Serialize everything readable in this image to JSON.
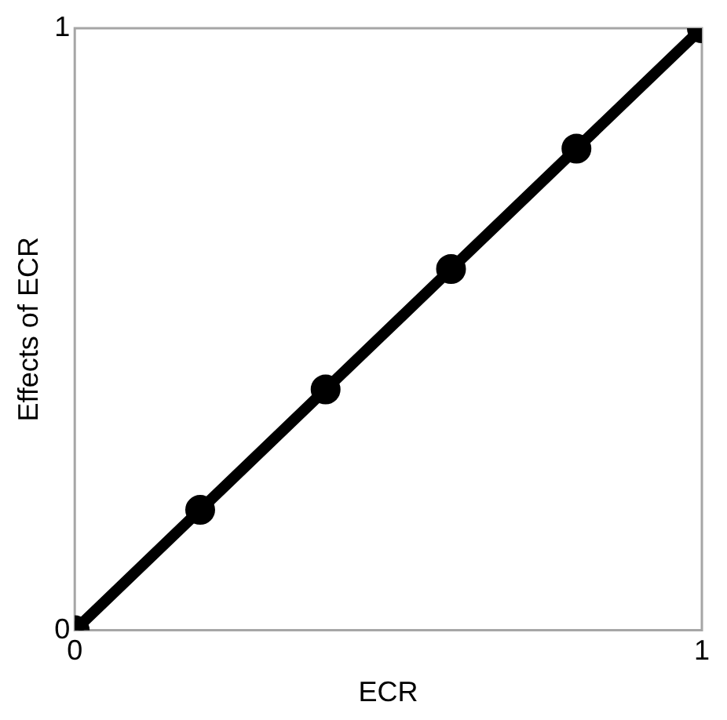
{
  "chart_data": {
    "type": "line",
    "xlabel": "ECR",
    "ylabel": "Effects of ECR",
    "x": [
      0,
      0.2,
      0.4,
      0.6,
      0.8,
      1
    ],
    "series": [
      {
        "color": "#000000",
        "values": [
          0,
          0.2,
          0.4,
          0.6,
          0.8,
          1
        ]
      }
    ],
    "xlim": [
      0,
      1
    ],
    "xticks": [
      0,
      1
    ],
    "ylim": [
      0,
      1
    ],
    "yticks": [
      0,
      1
    ],
    "marker": "circle",
    "line_style": "solid",
    "legend": false
  }
}
